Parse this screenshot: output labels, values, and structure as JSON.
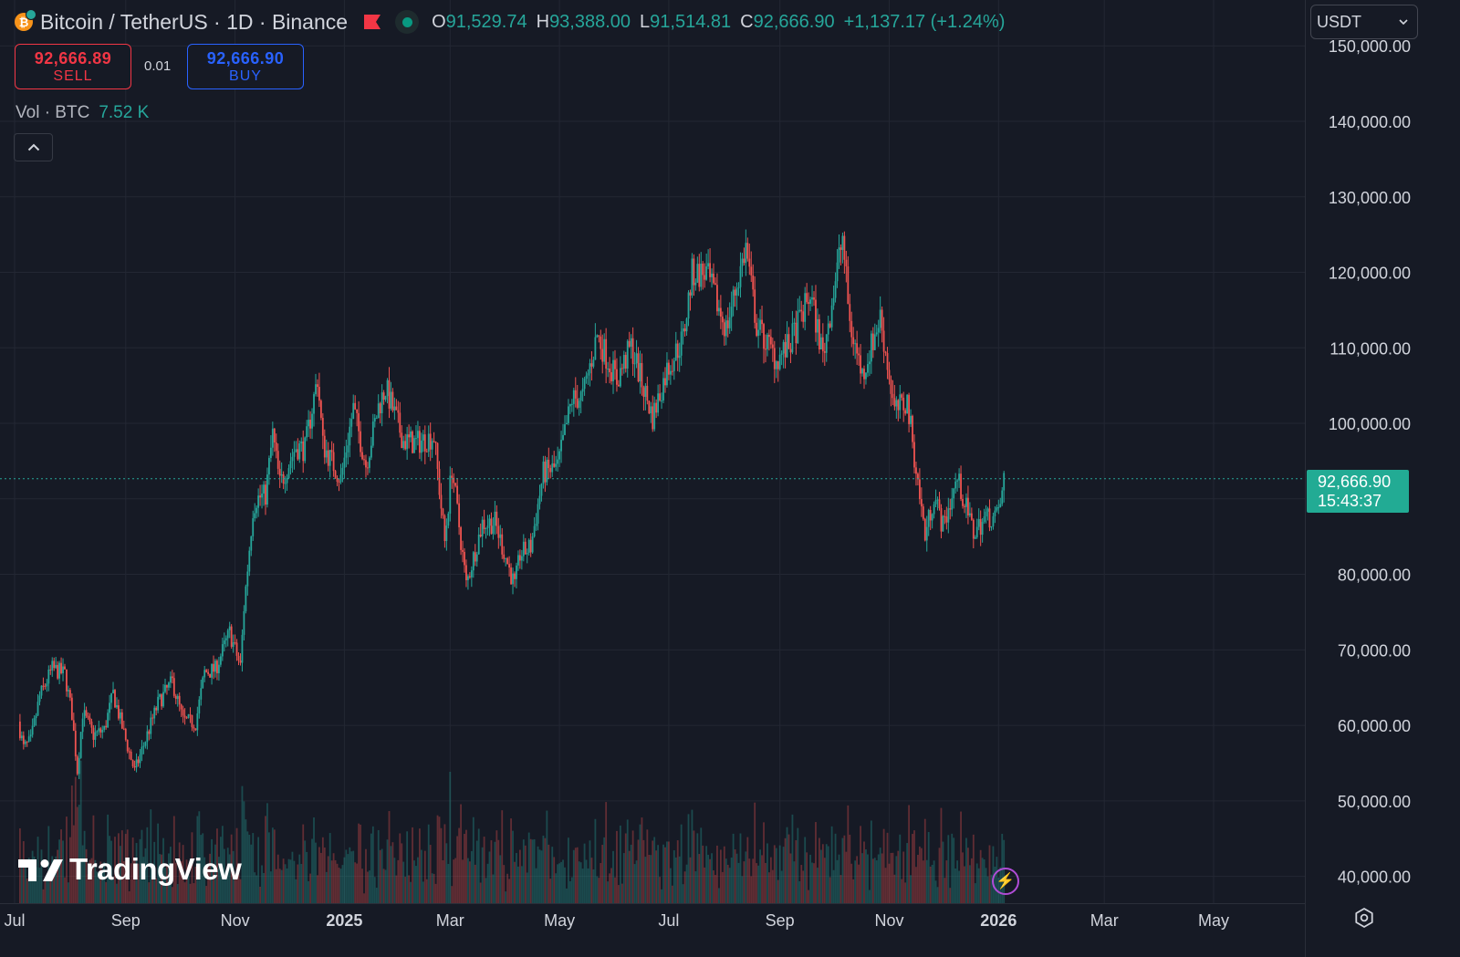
{
  "header": {
    "symbol": "Bitcoin / TetherUS · 1D · Binance",
    "coin_icon": "bitcoin-icon",
    "ohlc": [
      {
        "key": "O",
        "value": "91,529.74"
      },
      {
        "key": "H",
        "value": "93,388.00"
      },
      {
        "key": "L",
        "value": "91,514.81"
      },
      {
        "key": "C",
        "value": "92,666.90"
      }
    ],
    "change": "+1,137.17 (+1.24%)"
  },
  "trade": {
    "sell_price": "92,666.89",
    "sell_label": "SELL",
    "buy_price": "92,666.90",
    "buy_label": "BUY",
    "quantity": "0.01"
  },
  "volume": {
    "label": "Vol · BTC",
    "value": "7.52 K"
  },
  "currency_select": "USDT",
  "price_tag": {
    "price": "92,666.90",
    "countdown": "15:43:37"
  },
  "brand": "TradingView",
  "colors": {
    "up": "#26a69a",
    "down": "#ef5350",
    "background": "#161a25",
    "grid": "#232733",
    "price_tag": "#22ab94"
  },
  "chart_data": {
    "type": "candlestick",
    "y_ticks": [
      "150,000.00",
      "140,000.00",
      "130,000.00",
      "120,000.00",
      "110,000.00",
      "100,000.00",
      "80,000.00",
      "70,000.00",
      "60,000.00",
      "50,000.00",
      "40,000.00"
    ],
    "y_tick_values": [
      150000,
      140000,
      130000,
      120000,
      110000,
      100000,
      80000,
      70000,
      60000,
      50000,
      40000
    ],
    "ylim": [
      37200,
      151500
    ],
    "x_ticks": [
      {
        "label": "Jul",
        "date": "2024-07-01",
        "bold": false
      },
      {
        "label": "Sep",
        "date": "2024-09-01",
        "bold": false
      },
      {
        "label": "Nov",
        "date": "2024-11-01",
        "bold": false
      },
      {
        "label": "2025",
        "date": "2025-01-01",
        "bold": true
      },
      {
        "label": "Mar",
        "date": "2025-03-01",
        "bold": false
      },
      {
        "label": "May",
        "date": "2025-05-01",
        "bold": false
      },
      {
        "label": "Jul",
        "date": "2025-07-01",
        "bold": false
      },
      {
        "label": "Sep",
        "date": "2025-09-01",
        "bold": false
      },
      {
        "label": "Nov",
        "date": "2025-11-01",
        "bold": false
      },
      {
        "label": "2026",
        "date": "2026-01-01",
        "bold": true
      },
      {
        "label": "Mar",
        "date": "2026-03-01",
        "bold": false
      },
      {
        "label": "May",
        "date": "2026-05-01",
        "bold": false
      }
    ],
    "last_price": 92666.9,
    "series": [
      {
        "date": "2024-07-03",
        "close": 60500
      },
      {
        "date": "2024-07-06",
        "close": 57000
      },
      {
        "date": "2024-07-10",
        "close": 57900
      },
      {
        "date": "2024-07-15",
        "close": 63800
      },
      {
        "date": "2024-07-22",
        "close": 67500
      },
      {
        "date": "2024-07-29",
        "close": 66800
      },
      {
        "date": "2024-08-02",
        "close": 61500
      },
      {
        "date": "2024-08-05",
        "close": 54000
      },
      {
        "date": "2024-08-08",
        "close": 61700
      },
      {
        "date": "2024-08-14",
        "close": 58700
      },
      {
        "date": "2024-08-20",
        "close": 59400
      },
      {
        "date": "2024-08-25",
        "close": 64200
      },
      {
        "date": "2024-08-31",
        "close": 58900
      },
      {
        "date": "2024-09-06",
        "close": 53900
      },
      {
        "date": "2024-09-12",
        "close": 58100
      },
      {
        "date": "2024-09-19",
        "close": 62900
      },
      {
        "date": "2024-09-27",
        "close": 65800
      },
      {
        "date": "2024-10-03",
        "close": 60600
      },
      {
        "date": "2024-10-10",
        "close": 60300
      },
      {
        "date": "2024-10-15",
        "close": 67000
      },
      {
        "date": "2024-10-21",
        "close": 67400
      },
      {
        "date": "2024-10-29",
        "close": 72300
      },
      {
        "date": "2024-11-04",
        "close": 67800
      },
      {
        "date": "2024-11-06",
        "close": 75600
      },
      {
        "date": "2024-11-11",
        "close": 88700
      },
      {
        "date": "2024-11-13",
        "close": 90000
      },
      {
        "date": "2024-11-18",
        "close": 90500
      },
      {
        "date": "2024-11-22",
        "close": 98500
      },
      {
        "date": "2024-11-26",
        "close": 91900
      },
      {
        "date": "2024-12-05",
        "close": 96900
      },
      {
        "date": "2024-12-10",
        "close": 96600
      },
      {
        "date": "2024-12-17",
        "close": 106100
      },
      {
        "date": "2024-12-20",
        "close": 97200
      },
      {
        "date": "2024-12-30",
        "close": 92600
      },
      {
        "date": "2025-01-06",
        "close": 102000
      },
      {
        "date": "2025-01-13",
        "close": 94500
      },
      {
        "date": "2025-01-20",
        "close": 102200
      },
      {
        "date": "2025-01-24",
        "close": 104700
      },
      {
        "date": "2025-02-03",
        "close": 97700
      },
      {
        "date": "2025-02-10",
        "close": 97400
      },
      {
        "date": "2025-02-20",
        "close": 98300
      },
      {
        "date": "2025-02-26",
        "close": 84300
      },
      {
        "date": "2025-03-02",
        "close": 94200
      },
      {
        "date": "2025-03-10",
        "close": 78600
      },
      {
        "date": "2025-03-19",
        "close": 86800
      },
      {
        "date": "2025-03-26",
        "close": 86900
      },
      {
        "date": "2025-04-06",
        "close": 78400
      },
      {
        "date": "2025-04-09",
        "close": 82600
      },
      {
        "date": "2025-04-15",
        "close": 83600
      },
      {
        "date": "2025-04-22",
        "close": 93400
      },
      {
        "date": "2025-04-30",
        "close": 94200
      },
      {
        "date": "2025-05-08",
        "close": 103200
      },
      {
        "date": "2025-05-14",
        "close": 103500
      },
      {
        "date": "2025-05-22",
        "close": 111700
      },
      {
        "date": "2025-06-02",
        "close": 105700
      },
      {
        "date": "2025-06-10",
        "close": 110200
      },
      {
        "date": "2025-06-17",
        "close": 104600
      },
      {
        "date": "2025-06-22",
        "close": 100800
      },
      {
        "date": "2025-06-30",
        "close": 107100
      },
      {
        "date": "2025-07-09",
        "close": 111300
      },
      {
        "date": "2025-07-14",
        "close": 119800
      },
      {
        "date": "2025-07-22",
        "close": 119900
      },
      {
        "date": "2025-08-02",
        "close": 112500
      },
      {
        "date": "2025-08-13",
        "close": 123300
      },
      {
        "date": "2025-08-19",
        "close": 113000
      },
      {
        "date": "2025-08-30",
        "close": 108400
      },
      {
        "date": "2025-09-06",
        "close": 110200
      },
      {
        "date": "2025-09-18",
        "close": 117100
      },
      {
        "date": "2025-09-25",
        "close": 109000
      },
      {
        "date": "2025-10-06",
        "close": 124700
      },
      {
        "date": "2025-10-10",
        "close": 113200
      },
      {
        "date": "2025-10-17",
        "close": 106400
      },
      {
        "date": "2025-10-27",
        "close": 114100
      },
      {
        "date": "2025-11-04",
        "close": 101500
      },
      {
        "date": "2025-11-11",
        "close": 102900
      },
      {
        "date": "2025-11-17",
        "close": 92200
      },
      {
        "date": "2025-11-21",
        "close": 85100
      },
      {
        "date": "2025-11-26",
        "close": 90500
      },
      {
        "date": "2025-12-01",
        "close": 86300
      },
      {
        "date": "2025-12-09",
        "close": 92700
      },
      {
        "date": "2025-12-18",
        "close": 85500
      },
      {
        "date": "2025-12-25",
        "close": 87600
      },
      {
        "date": "2025-12-31",
        "close": 87600
      },
      {
        "date": "2026-01-03",
        "close": 90500
      },
      {
        "date": "2026-01-04",
        "close": 92666.9
      }
    ]
  }
}
